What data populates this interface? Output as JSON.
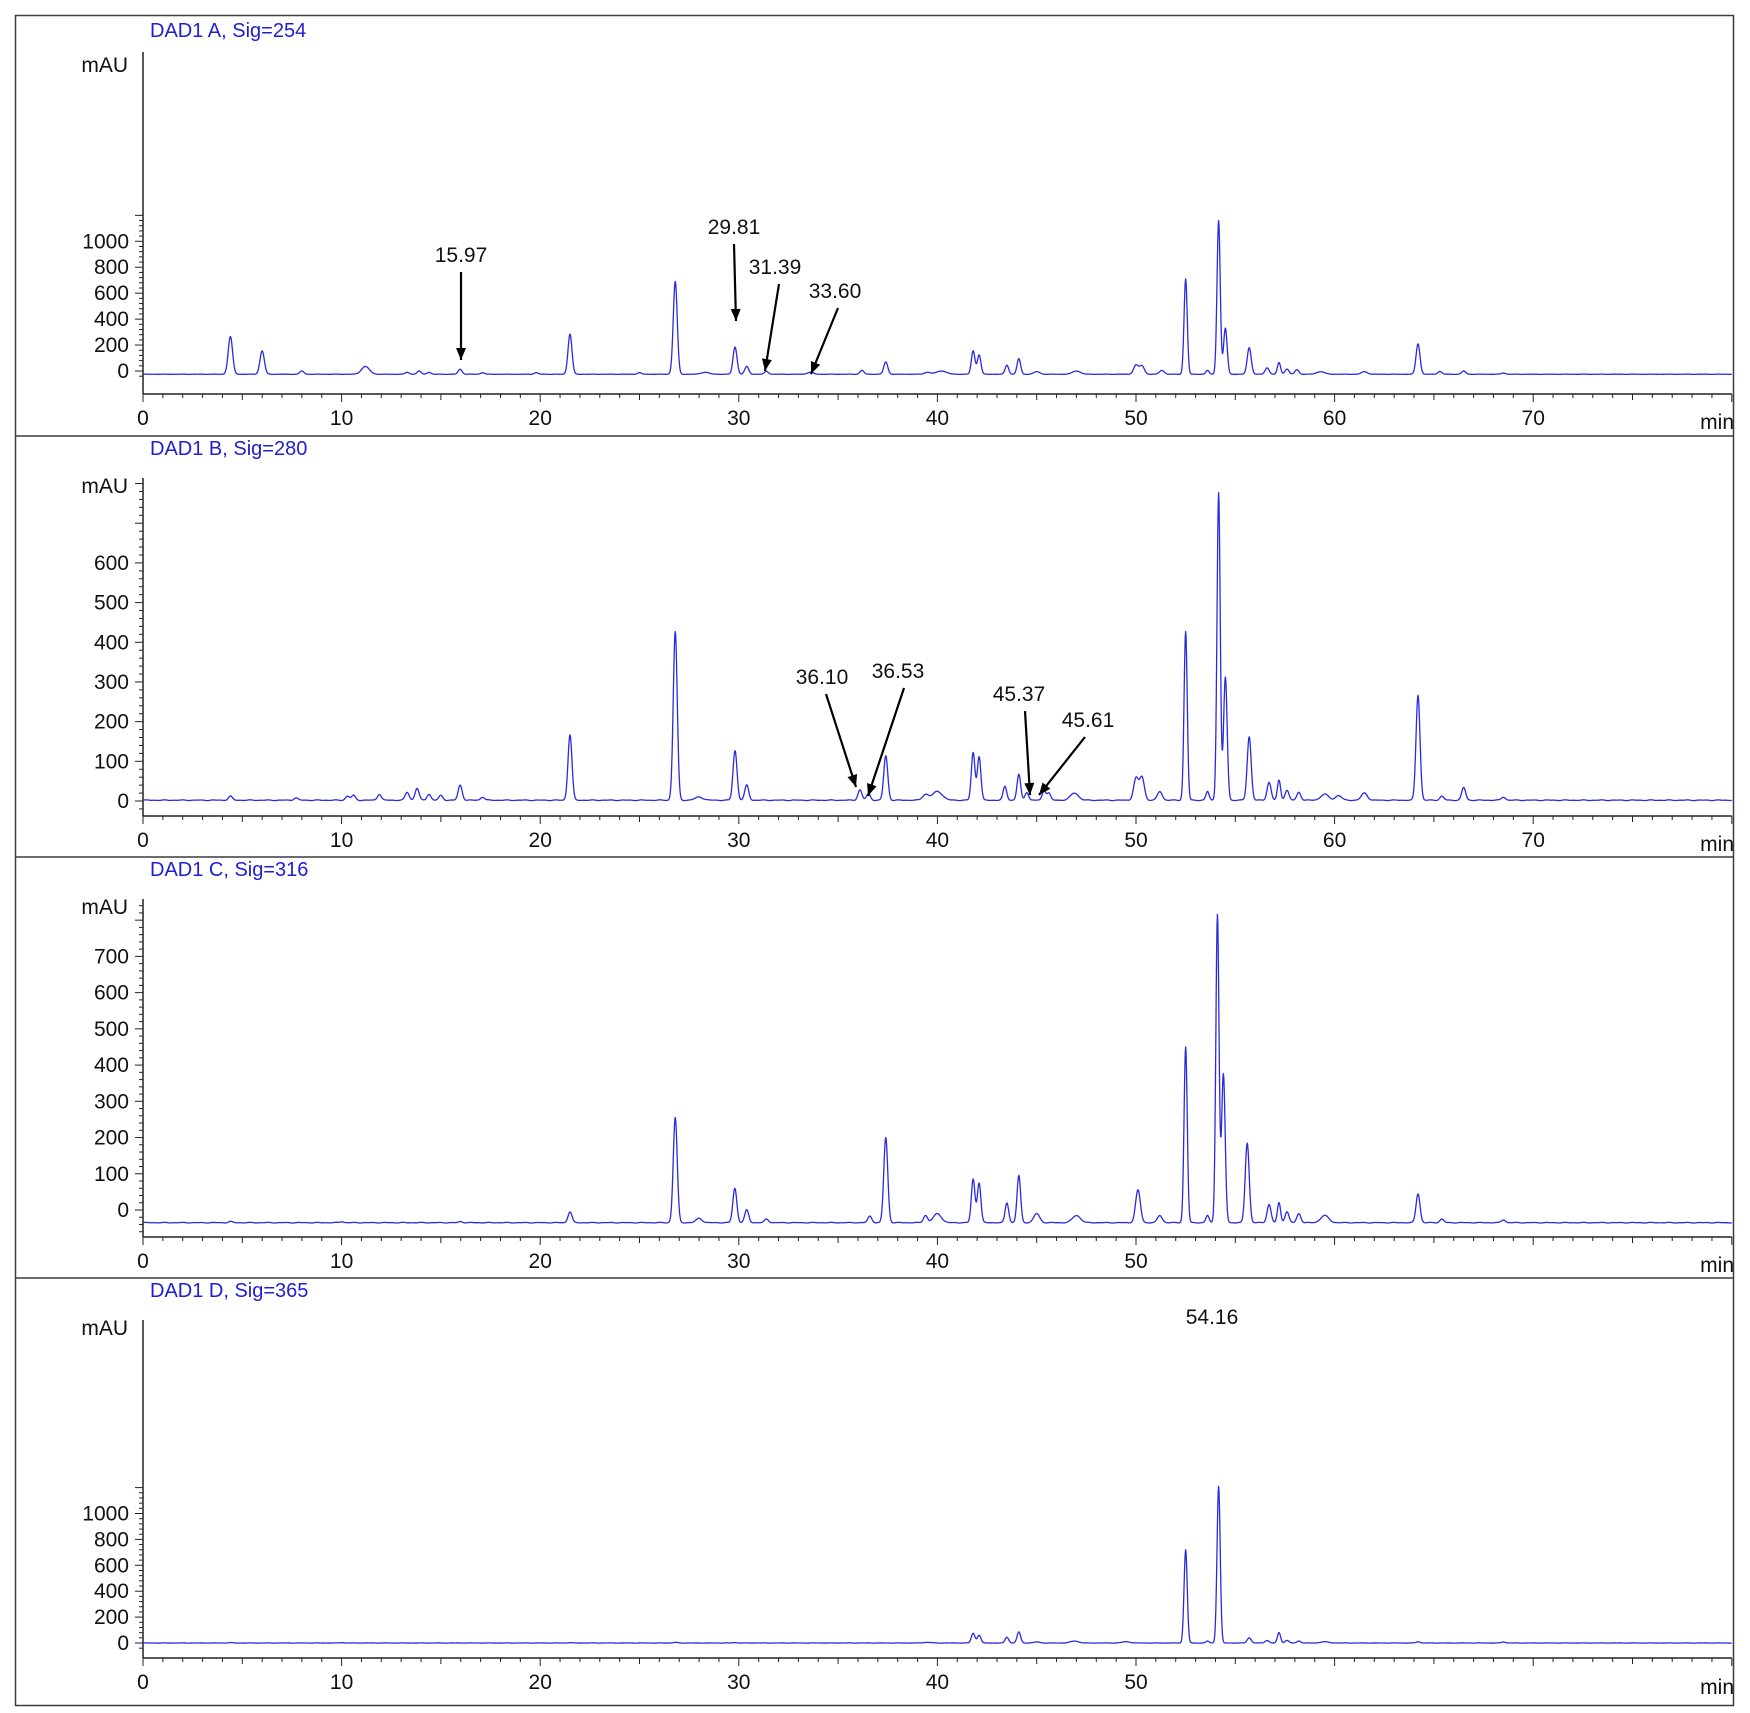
{
  "chart_data": [
    {
      "type": "line",
      "title": "DAD1 A, Sig=254",
      "ylabel": "mAU",
      "xlabel": "min",
      "xlim": [
        0,
        80
      ],
      "ylim": [
        -60,
        1200
      ],
      "xticks": [
        0,
        10,
        20,
        30,
        40,
        50,
        60,
        70
      ],
      "yticks": [
        0,
        200,
        400,
        600,
        800,
        1000
      ],
      "baseline": -25,
      "peaks": [
        [
          4.4,
          290,
          0.11
        ],
        [
          6.0,
          180,
          0.11
        ],
        [
          8.0,
          25,
          0.1
        ],
        [
          11.2,
          60,
          0.2
        ],
        [
          13.3,
          15,
          0.1
        ],
        [
          13.9,
          25,
          0.1
        ],
        [
          14.4,
          15,
          0.1
        ],
        [
          15.97,
          38,
          0.1
        ],
        [
          17.1,
          12,
          0.1
        ],
        [
          19.8,
          12,
          0.1
        ],
        [
          21.5,
          310,
          0.1
        ],
        [
          25.0,
          12,
          0.1
        ],
        [
          26.8,
          715,
          0.1
        ],
        [
          28.3,
          15,
          0.2
        ],
        [
          29.81,
          210,
          0.1
        ],
        [
          30.4,
          60,
          0.1
        ],
        [
          31.39,
          22,
          0.1
        ],
        [
          33.6,
          15,
          0.15
        ],
        [
          36.2,
          30,
          0.1
        ],
        [
          37.4,
          95,
          0.1
        ],
        [
          39.5,
          15,
          0.15
        ],
        [
          40.2,
          25,
          0.25
        ],
        [
          41.8,
          180,
          0.09
        ],
        [
          42.1,
          150,
          0.09
        ],
        [
          43.5,
          70,
          0.09
        ],
        [
          44.1,
          120,
          0.09
        ],
        [
          45.0,
          20,
          0.15
        ],
        [
          47.0,
          25,
          0.2
        ],
        [
          50.0,
          70,
          0.12
        ],
        [
          50.3,
          65,
          0.12
        ],
        [
          51.3,
          30,
          0.12
        ],
        [
          52.5,
          735,
          0.08
        ],
        [
          53.6,
          30,
          0.08
        ],
        [
          54.16,
          1185,
          0.08
        ],
        [
          54.5,
          355,
          0.09
        ],
        [
          55.7,
          205,
          0.1
        ],
        [
          56.6,
          50,
          0.1
        ],
        [
          57.2,
          90,
          0.08
        ],
        [
          57.6,
          40,
          0.1
        ],
        [
          58.1,
          35,
          0.1
        ],
        [
          59.3,
          20,
          0.2
        ],
        [
          61.5,
          20,
          0.15
        ],
        [
          64.2,
          235,
          0.1
        ],
        [
          65.3,
          22,
          0.1
        ],
        [
          66.5,
          25,
          0.1
        ],
        [
          68.5,
          10,
          0.1
        ]
      ],
      "annotations": [
        {
          "label": "15.97",
          "x": 15.97
        },
        {
          "label": "29.81",
          "x": 29.81
        },
        {
          "label": "31.39",
          "x": 31.39
        },
        {
          "label": "33.60",
          "x": 33.6
        }
      ]
    },
    {
      "type": "line",
      "title": "DAD1 B, Sig=280",
      "ylabel": "mAU",
      "xlabel": "min",
      "xlim": [
        0,
        80
      ],
      "ylim": [
        -40,
        800
      ],
      "xticks": [
        0,
        10,
        20,
        30,
        40,
        50,
        60,
        70
      ],
      "yticks": [
        0,
        100,
        200,
        300,
        400,
        500,
        600
      ],
      "baseline": 2,
      "peaks": [
        [
          4.4,
          10,
          0.1
        ],
        [
          7.7,
          6,
          0.1
        ],
        [
          10.3,
          10,
          0.1
        ],
        [
          10.6,
          12,
          0.1
        ],
        [
          11.9,
          15,
          0.1
        ],
        [
          13.3,
          20,
          0.1
        ],
        [
          13.8,
          30,
          0.1
        ],
        [
          14.4,
          15,
          0.1
        ],
        [
          15.0,
          12,
          0.1
        ],
        [
          15.97,
          38,
          0.1
        ],
        [
          17.1,
          8,
          0.1
        ],
        [
          21.5,
          165,
          0.1
        ],
        [
          26.8,
          425,
          0.1
        ],
        [
          28.0,
          8,
          0.2
        ],
        [
          29.81,
          125,
          0.1
        ],
        [
          30.4,
          38,
          0.1
        ],
        [
          36.1,
          26,
          0.1
        ],
        [
          36.53,
          16,
          0.1
        ],
        [
          37.4,
          112,
          0.1
        ],
        [
          39.4,
          14,
          0.15
        ],
        [
          40.0,
          22,
          0.25
        ],
        [
          41.8,
          120,
          0.09
        ],
        [
          42.1,
          110,
          0.09
        ],
        [
          43.4,
          35,
          0.09
        ],
        [
          44.1,
          65,
          0.09
        ],
        [
          44.5,
          20,
          0.09
        ],
        [
          45.37,
          25,
          0.09
        ],
        [
          45.61,
          18,
          0.09
        ],
        [
          46.9,
          18,
          0.2
        ],
        [
          50.0,
          55,
          0.12
        ],
        [
          50.3,
          58,
          0.12
        ],
        [
          51.2,
          22,
          0.12
        ],
        [
          52.5,
          425,
          0.08
        ],
        [
          53.6,
          22,
          0.08
        ],
        [
          54.16,
          775,
          0.08
        ],
        [
          54.5,
          310,
          0.09
        ],
        [
          55.7,
          160,
          0.1
        ],
        [
          56.7,
          45,
          0.1
        ],
        [
          57.2,
          50,
          0.08
        ],
        [
          57.6,
          25,
          0.1
        ],
        [
          58.2,
          20,
          0.1
        ],
        [
          59.5,
          15,
          0.2
        ],
        [
          60.2,
          12,
          0.15
        ],
        [
          61.5,
          18,
          0.15
        ],
        [
          64.2,
          265,
          0.1
        ],
        [
          65.4,
          10,
          0.1
        ],
        [
          66.5,
          32,
          0.1
        ],
        [
          68.5,
          8,
          0.1
        ]
      ],
      "annotations": [
        {
          "label": "36.10",
          "x": 36.1
        },
        {
          "label": "36.53",
          "x": 36.53
        },
        {
          "label": "45.37",
          "x": 45.37
        },
        {
          "label": "45.61",
          "x": 45.61
        }
      ]
    },
    {
      "type": "line",
      "title": "DAD1 C, Sig=316",
      "ylabel": "mAU",
      "xlabel": "min",
      "xlim": [
        0,
        80
      ],
      "ylim": [
        -70,
        850
      ],
      "xticks": [
        0,
        10,
        20,
        30,
        40,
        50
      ],
      "yticks": [
        0,
        100,
        200,
        300,
        400,
        500,
        600,
        700
      ],
      "baseline": -35,
      "peaks": [
        [
          4.4,
          3,
          0.1
        ],
        [
          10.0,
          3,
          0.1
        ],
        [
          16.0,
          3,
          0.1
        ],
        [
          21.5,
          30,
          0.1
        ],
        [
          26.8,
          290,
          0.1
        ],
        [
          28.0,
          12,
          0.15
        ],
        [
          29.8,
          95,
          0.1
        ],
        [
          30.4,
          35,
          0.1
        ],
        [
          31.4,
          10,
          0.1
        ],
        [
          36.6,
          18,
          0.1
        ],
        [
          37.4,
          235,
          0.1
        ],
        [
          39.4,
          20,
          0.1
        ],
        [
          40.0,
          25,
          0.2
        ],
        [
          41.8,
          120,
          0.09
        ],
        [
          42.1,
          110,
          0.09
        ],
        [
          43.5,
          55,
          0.09
        ],
        [
          44.1,
          130,
          0.09
        ],
        [
          45.0,
          25,
          0.15
        ],
        [
          47.0,
          20,
          0.2
        ],
        [
          50.1,
          90,
          0.12
        ],
        [
          51.2,
          20,
          0.12
        ],
        [
          52.5,
          485,
          0.08
        ],
        [
          53.6,
          20,
          0.08
        ],
        [
          54.1,
          850,
          0.08
        ],
        [
          54.4,
          410,
          0.09
        ],
        [
          55.6,
          220,
          0.1
        ],
        [
          56.7,
          50,
          0.1
        ],
        [
          57.2,
          55,
          0.08
        ],
        [
          57.6,
          30,
          0.1
        ],
        [
          58.2,
          25,
          0.1
        ],
        [
          59.5,
          20,
          0.2
        ],
        [
          64.2,
          80,
          0.1
        ],
        [
          65.4,
          10,
          0.1
        ],
        [
          68.5,
          8,
          0.1
        ]
      ],
      "annotations": []
    },
    {
      "type": "line",
      "title": "DAD1 D, Sig=365",
      "ylabel": "mAU",
      "xlabel": "min",
      "xlim": [
        0,
        80
      ],
      "ylim": [
        -60,
        1230
      ],
      "xticks": [
        0,
        10,
        20,
        30,
        40,
        50
      ],
      "yticks": [
        0,
        200,
        400,
        600,
        800,
        1000
      ],
      "baseline": 0,
      "peaks": [
        [
          4.4,
          3,
          0.1
        ],
        [
          10.0,
          3,
          0.1
        ],
        [
          21.5,
          3,
          0.1
        ],
        [
          26.8,
          5,
          0.1
        ],
        [
          29.8,
          3,
          0.1
        ],
        [
          39.5,
          5,
          0.2
        ],
        [
          41.8,
          75,
          0.09
        ],
        [
          42.1,
          60,
          0.09
        ],
        [
          43.5,
          45,
          0.09
        ],
        [
          44.1,
          85,
          0.09
        ],
        [
          45.0,
          8,
          0.15
        ],
        [
          46.9,
          15,
          0.2
        ],
        [
          49.5,
          10,
          0.2
        ],
        [
          52.5,
          720,
          0.08
        ],
        [
          53.6,
          15,
          0.08
        ],
        [
          54.16,
          1210,
          0.08
        ],
        [
          55.7,
          40,
          0.1
        ],
        [
          56.6,
          20,
          0.1
        ],
        [
          57.2,
          80,
          0.08
        ],
        [
          57.6,
          20,
          0.1
        ],
        [
          58.2,
          15,
          0.1
        ],
        [
          59.5,
          10,
          0.2
        ],
        [
          64.2,
          10,
          0.1
        ],
        [
          68.5,
          8,
          0.1
        ]
      ],
      "annotations": [
        {
          "label": "54.16",
          "x": 54.16
        }
      ]
    }
  ]
}
